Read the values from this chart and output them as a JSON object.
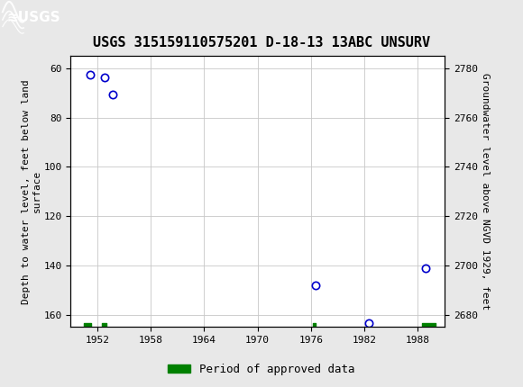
{
  "title": "USGS 315159110575201 D-18-13 13ABC UNSURV",
  "ylabel_left": "Depth to water level, feet below land\nsurface",
  "ylabel_right": "Groundwater level above NGVD 1929, feet",
  "header_color": "#006837",
  "background_color": "#e8e8e8",
  "plot_bg_color": "#ffffff",
  "grid_color": "#c8c8c8",
  "point_color": "#0000cc",
  "point_face": "none",
  "approved_color": "#008000",
  "xlim": [
    1949.0,
    1991.0
  ],
  "ylim_left": [
    55,
    165
  ],
  "ylim_right": [
    2675,
    2785
  ],
  "yticks_left": [
    60,
    80,
    100,
    120,
    140,
    160
  ],
  "yticks_right": [
    2680,
    2700,
    2720,
    2740,
    2760,
    2780
  ],
  "xticks": [
    1952,
    1958,
    1964,
    1970,
    1976,
    1982,
    1988
  ],
  "scatter_x": [
    1951.2,
    1952.8,
    1953.7,
    1976.5,
    1982.5,
    1988.9
  ],
  "scatter_y": [
    62.5,
    63.5,
    70.5,
    148.0,
    163.5,
    141.0
  ],
  "approved_segments": [
    [
      1950.5,
      1951.3
    ],
    [
      1952.5,
      1953.0
    ],
    [
      1976.2,
      1976.5
    ],
    [
      1988.5,
      1990.0
    ]
  ],
  "approved_y_center": 164.5,
  "approved_bar_half_height": 1.0,
  "legend_label": "Period of approved data",
  "title_fontsize": 11,
  "axis_label_fontsize": 8,
  "tick_fontsize": 8,
  "legend_fontsize": 9
}
